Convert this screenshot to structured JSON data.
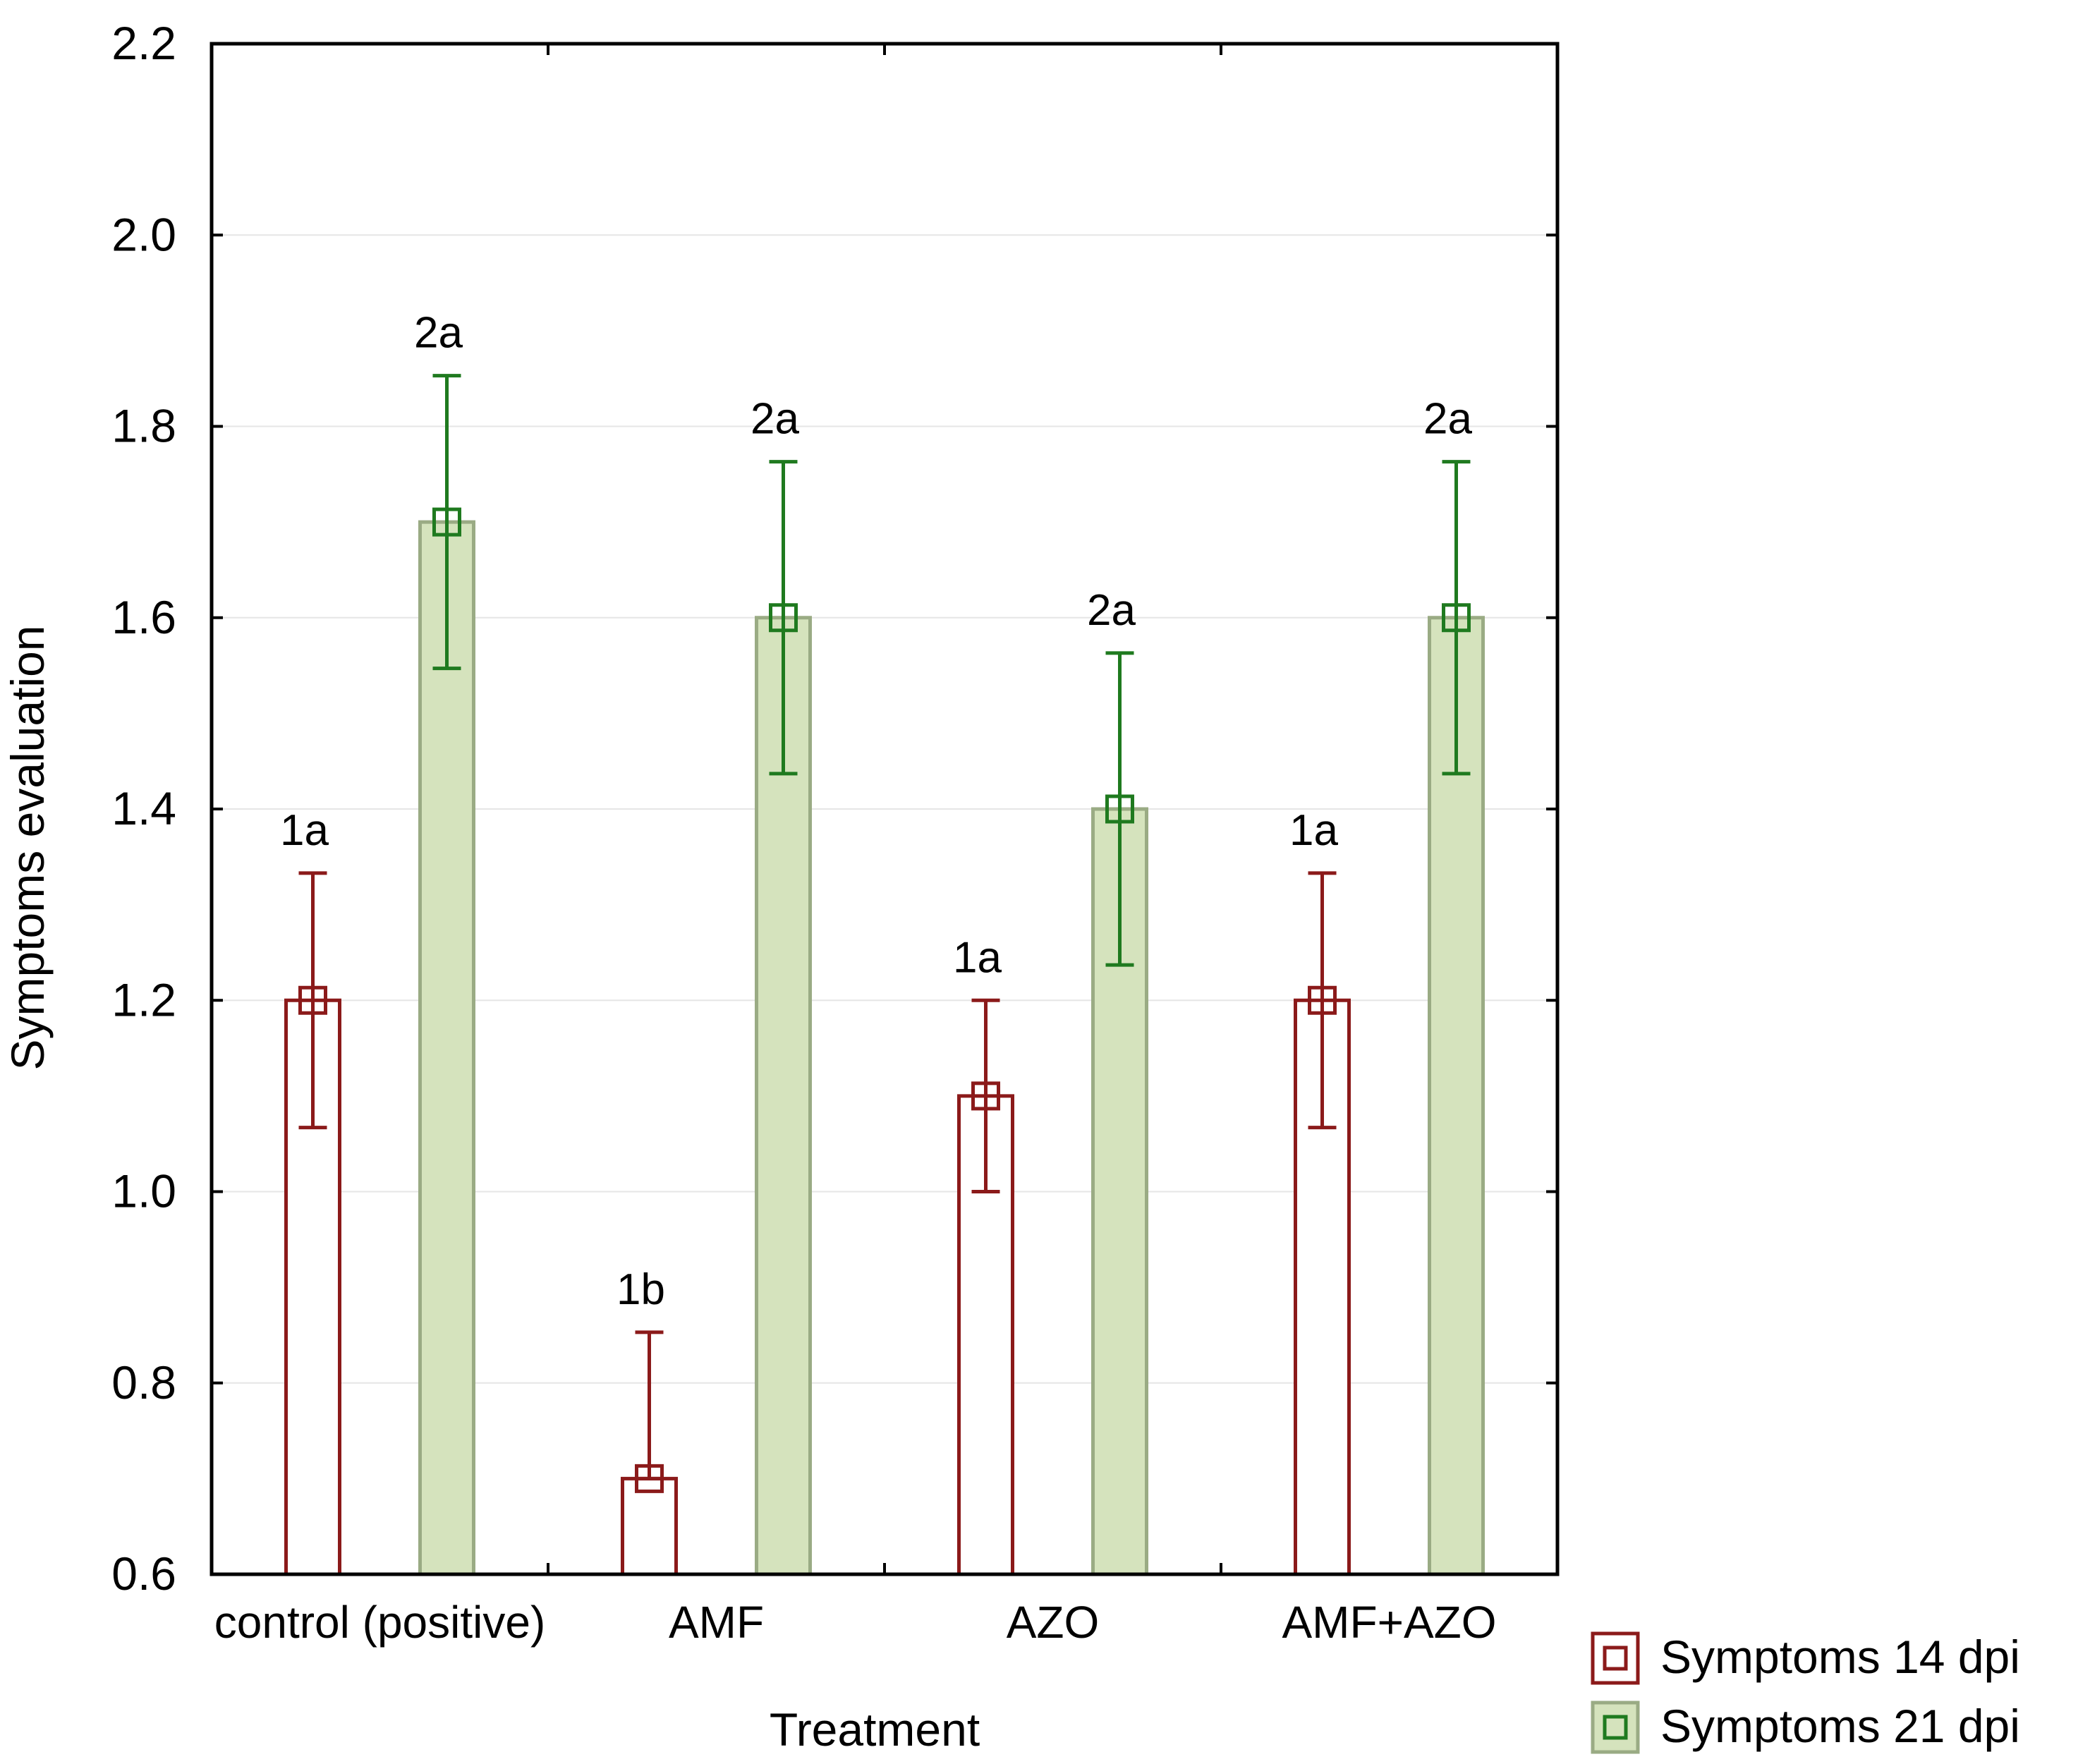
{
  "chart_data": {
    "type": "bar",
    "title": "",
    "xlabel": "Treatment",
    "ylabel": "Symptoms evaluation",
    "ylim": [
      0.6,
      2.2
    ],
    "yticks": [
      "0.6",
      "0.8",
      "1.0",
      "1.2",
      "1.4",
      "1.6",
      "1.8",
      "2.0",
      "2.2"
    ],
    "categories": [
      "control (positive)",
      "AMF",
      "AZO",
      "AMF+AZO"
    ],
    "grid": true,
    "legend_position": "bottom-right outside",
    "series": [
      {
        "name": "Symptoms 14 dpi",
        "color": "#8b1a1a",
        "fill": "#ffffff",
        "values": [
          1.2,
          0.7,
          1.1,
          1.2
        ],
        "err_low": [
          1.067,
          0.7,
          1.0,
          1.067
        ],
        "err_high": [
          1.333,
          0.853,
          1.2,
          1.333
        ],
        "labels": [
          "1a",
          "1b",
          "1a",
          "1a"
        ]
      },
      {
        "name": "Symptoms 21 dpi",
        "color": "#1f7a1f",
        "fill": "#d5e3bd",
        "edge": "#9aab84",
        "values": [
          1.7,
          1.6,
          1.4,
          1.6
        ],
        "err_low": [
          1.547,
          1.437,
          1.237,
          1.437
        ],
        "err_high": [
          1.853,
          1.763,
          1.563,
          1.763
        ],
        "labels": [
          "2a",
          "2a",
          "2a",
          "2a"
        ]
      }
    ]
  }
}
